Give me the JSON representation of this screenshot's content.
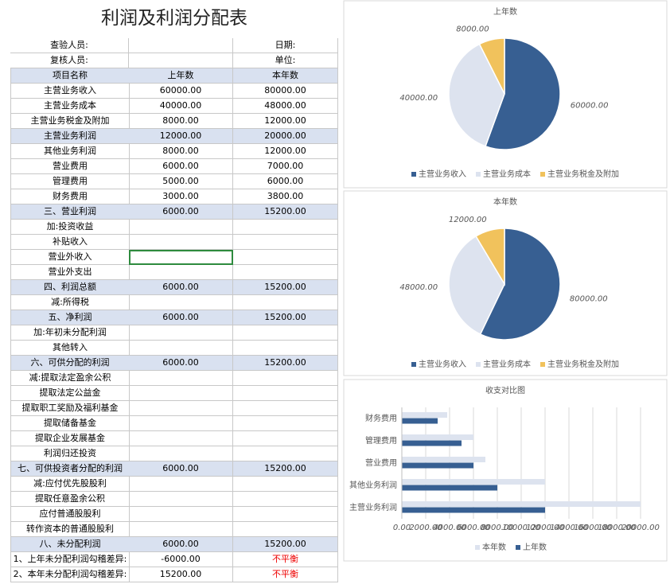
{
  "table": {
    "title": "利润及利润分配表",
    "rows": [
      [
        "查验人员:",
        null,
        "日期:"
      ],
      [
        "复核人员:",
        null,
        "单位:"
      ],
      [
        "项目名称",
        "上年数",
        "本年数"
      ],
      [
        "主营业务收入",
        "60000.00",
        "80000.00"
      ],
      [
        "主营业务成本",
        "40000.00",
        "48000.00"
      ],
      [
        "主营业务税金及附加",
        "8000.00",
        "12000.00"
      ],
      [
        "主营业务利润",
        "12000.00",
        "20000.00"
      ],
      [
        "其他业务利润",
        "8000.00",
        "12000.00"
      ],
      [
        "营业费用",
        "6000.00",
        "7000.00"
      ],
      [
        "管理费用",
        "5000.00",
        "6000.00"
      ],
      [
        "财务费用",
        "3000.00",
        "3800.00"
      ],
      [
        "三、营业利润",
        "6000.00",
        "15200.00"
      ],
      [
        "加:投资收益",
        null,
        null
      ],
      [
        "补贴收入",
        null,
        null
      ],
      [
        "营业外收入",
        null,
        null
      ],
      [
        "营业外支出",
        null,
        null
      ],
      [
        "四、利润总额",
        "6000.00",
        "15200.00"
      ],
      [
        "减:所得税",
        null,
        null
      ],
      [
        "五、净利润",
        "6000.00",
        "15200.00"
      ],
      [
        "加:年初未分配利润",
        null,
        null
      ],
      [
        "其他转入",
        null,
        null
      ],
      [
        "六、可供分配的利润",
        "6000.00",
        "15200.00"
      ],
      [
        "减:提取法定盈余公积",
        null,
        null
      ],
      [
        "提取法定公益金",
        null,
        null
      ],
      [
        "提取职工奖励及福利基金",
        null,
        null
      ],
      [
        "提取储备基金",
        null,
        null
      ],
      [
        "提取企业发展基金",
        null,
        null
      ],
      [
        "利润归还投资",
        null,
        null
      ],
      [
        "七、可供投资者分配的利润",
        "6000.00",
        "15200.00"
      ],
      [
        "减:应付优先股股利",
        null,
        null
      ],
      [
        "提取任意盈余公积",
        null,
        null
      ],
      [
        "应付普通股股利",
        null,
        null
      ],
      [
        "转作资本的普通股股利",
        null,
        null
      ],
      [
        "八、未分配利润",
        "6000.00",
        "15200.00"
      ],
      [
        "1、上年未分配利润勾稽差异:",
        "-6000.00",
        "不平衡"
      ],
      [
        "2、本年未分配利润勾稽差异:",
        "15200.00",
        "不平衡"
      ]
    ],
    "shaded_rows": [
      2,
      6,
      11,
      16,
      18,
      21,
      28,
      33
    ],
    "red_rows": [
      34,
      35
    ],
    "selected_cell": [
      14,
      1
    ]
  },
  "chart_data": [
    {
      "type": "pie",
      "title": "上年数",
      "categories": [
        "主营业务收入",
        "主营业务成本",
        "主营业务税金及附加"
      ],
      "values": [
        60000,
        40000,
        8000
      ],
      "value_labels": [
        "60000.00",
        "40000.00",
        "8000.00"
      ],
      "colors": [
        "#375f92",
        "#dde3ef",
        "#f1c25c"
      ]
    },
    {
      "type": "pie",
      "title": "本年数",
      "categories": [
        "主营业务收入",
        "主营业务成本",
        "主营业务税金及附加"
      ],
      "values": [
        80000,
        48000,
        12000
      ],
      "value_labels": [
        "80000.00",
        "48000.00",
        "12000.00"
      ],
      "colors": [
        "#375f92",
        "#dde3ef",
        "#f1c25c"
      ]
    },
    {
      "type": "bar",
      "orientation": "horizontal",
      "title": "收支对比图",
      "categories": [
        "主营业务利润",
        "其他业务利润",
        "营业费用",
        "管理费用",
        "财务费用"
      ],
      "series": [
        {
          "name": "本年数",
          "color": "#dde3ef",
          "values": [
            20000,
            12000,
            7000,
            6000,
            3800
          ]
        },
        {
          "name": "上年数",
          "color": "#375f92",
          "values": [
            12000,
            8000,
            6000,
            5000,
            3000
          ]
        }
      ],
      "xlim": [
        0,
        20000
      ],
      "xticks": [
        {
          "value": 0,
          "label": "0.00"
        },
        {
          "value": 2000,
          "label": "2000.00"
        },
        {
          "value": 4000,
          "label": "4000.00"
        },
        {
          "value": 6000,
          "label": "6000.00"
        },
        {
          "value": 8000,
          "label": "8000.00"
        },
        {
          "value": 10000,
          "label": "10000.00"
        },
        {
          "value": 12000,
          "label": "12000.00"
        },
        {
          "value": 14000,
          "label": "14000.00"
        },
        {
          "value": 16000,
          "label": "16000.00"
        },
        {
          "value": 18000,
          "label": "18000.00"
        },
        {
          "value": 20000,
          "label": "20000.00"
        }
      ],
      "grid": true
    }
  ]
}
